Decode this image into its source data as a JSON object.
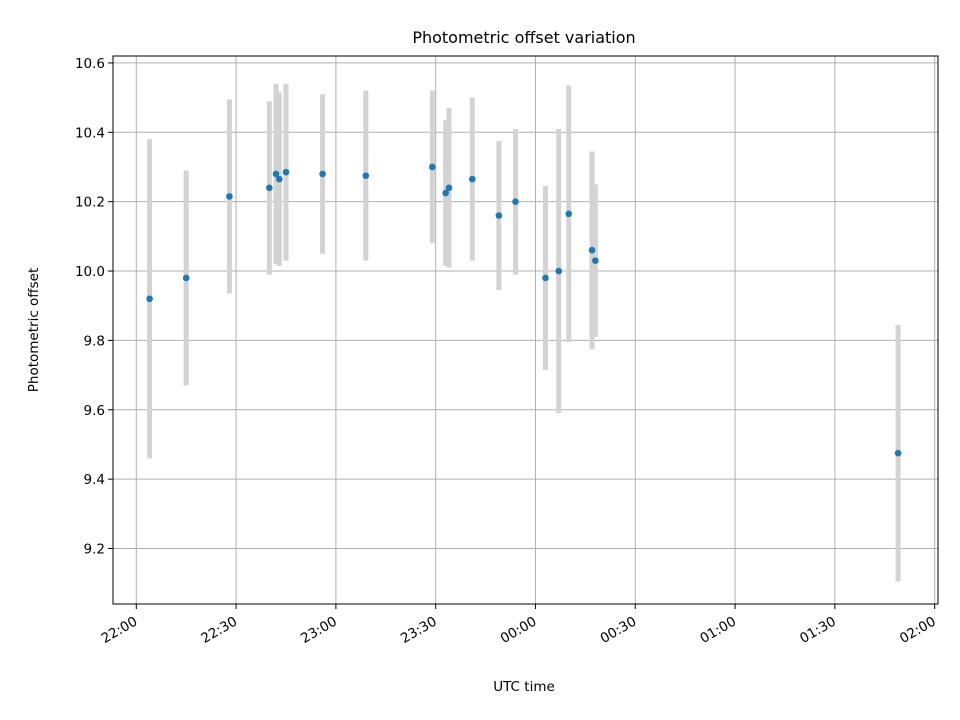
{
  "chart_data": {
    "type": "scatter",
    "title": "Photometric offset variation",
    "xlabel": "UTC time",
    "ylabel": "Photometric offset",
    "x_ticks": [
      "22:00",
      "22:30",
      "23:00",
      "23:30",
      "00:00",
      "00:30",
      "01:00",
      "01:30",
      "02:00"
    ],
    "y_ticks": [
      "9.2",
      "9.4",
      "9.6",
      "9.8",
      "10.0",
      "10.2",
      "10.4",
      "10.6"
    ],
    "xlim": [
      "21:53",
      "02:01"
    ],
    "ylim": [
      9.04,
      10.62
    ],
    "grid": true,
    "error_bars": true,
    "colors": {
      "points": "#1f77b4",
      "error_bars": "#d3d3d3",
      "grid": "#b0b0b0"
    },
    "points": [
      {
        "x": "22:04",
        "y": 9.92,
        "err": 0.46
      },
      {
        "x": "22:15",
        "y": 9.98,
        "err": 0.31
      },
      {
        "x": "22:28",
        "y": 10.215,
        "err": 0.28
      },
      {
        "x": "22:40",
        "y": 10.24,
        "err": 0.25
      },
      {
        "x": "22:42",
        "y": 10.28,
        "err": 0.26
      },
      {
        "x": "22:43",
        "y": 10.265,
        "err": 0.25
      },
      {
        "x": "22:45",
        "y": 10.285,
        "err": 0.255
      },
      {
        "x": "22:56",
        "y": 10.28,
        "err": 0.23
      },
      {
        "x": "23:09",
        "y": 10.275,
        "err": 0.245
      },
      {
        "x": "23:29",
        "y": 10.3,
        "err": 0.22
      },
      {
        "x": "23:33",
        "y": 10.225,
        "err": 0.21
      },
      {
        "x": "23:34",
        "y": 10.24,
        "err": 0.23
      },
      {
        "x": "23:41",
        "y": 10.265,
        "err": 0.235
      },
      {
        "x": "23:49",
        "y": 10.16,
        "err": 0.215
      },
      {
        "x": "23:54",
        "y": 10.2,
        "err": 0.21
      },
      {
        "x": "00:03",
        "y": 9.98,
        "err": 0.265
      },
      {
        "x": "00:07",
        "y": 10.0,
        "err": 0.41
      },
      {
        "x": "00:10",
        "y": 10.165,
        "err": 0.37
      },
      {
        "x": "00:17",
        "y": 10.06,
        "err": 0.285
      },
      {
        "x": "00:18",
        "y": 10.03,
        "err": 0.22
      },
      {
        "x": "01:49",
        "y": 9.475,
        "err": 0.37
      }
    ]
  }
}
